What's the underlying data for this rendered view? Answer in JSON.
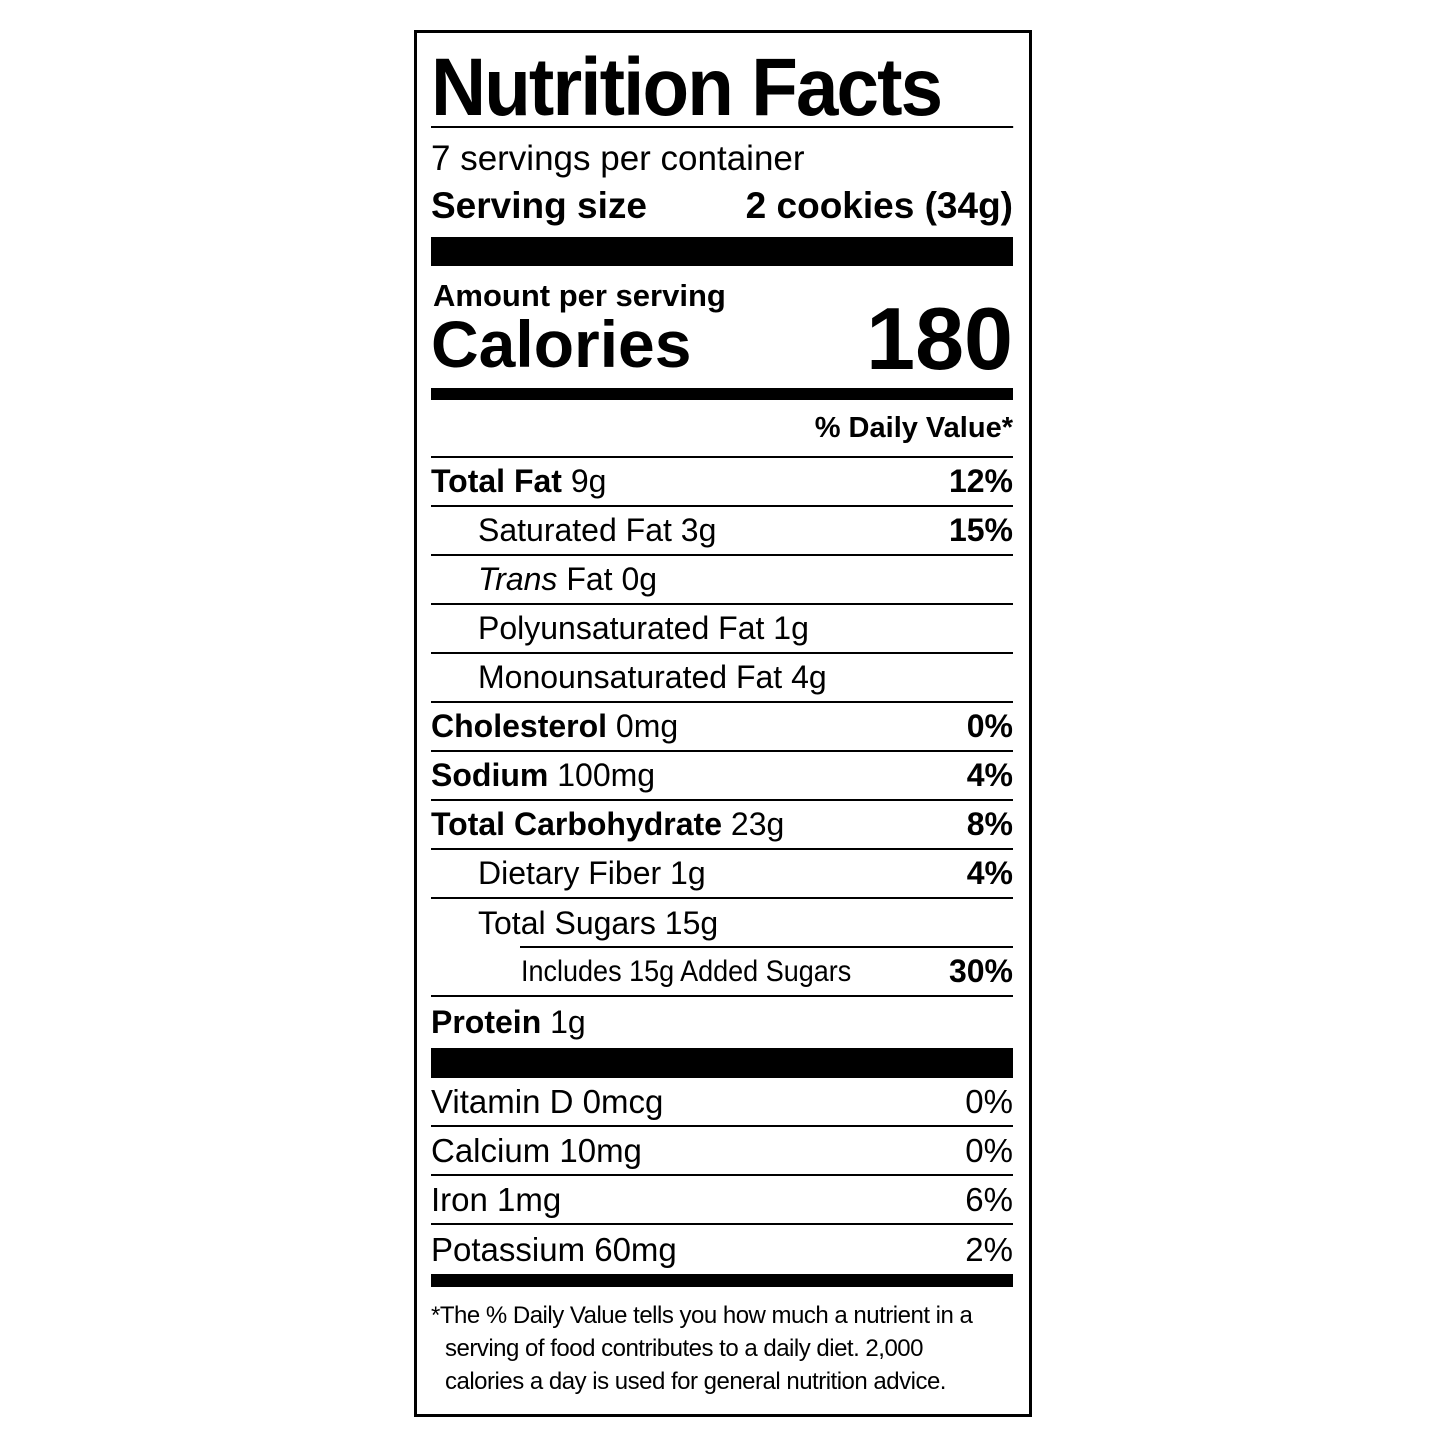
{
  "title": "Nutrition Facts",
  "servings_per_container": "7 servings per container",
  "serving_size_label": "Serving size",
  "serving_size_value": "2 cookies (34g)",
  "amount_per_serving": "Amount per serving",
  "calories_label": "Calories",
  "calories_value": "180",
  "daily_value_header": "% Daily Value*",
  "nutrients": [
    {
      "name": "Total Fat",
      "amount": "9g",
      "dv": "12%"
    },
    {
      "name": "Saturated Fat 3g",
      "dv": "15%"
    },
    {
      "name_italic": "Trans",
      "name": " Fat 0g"
    },
    {
      "name": "Polyunsaturated Fat 1g"
    },
    {
      "name": "Monounsaturated Fat 4g"
    },
    {
      "name": "Cholesterol",
      "amount": "0mg",
      "dv": "0%"
    },
    {
      "name": "Sodium",
      "amount": "100mg",
      "dv": "4%"
    },
    {
      "name": "Total Carbohydrate",
      "amount": "23g",
      "dv": "8%"
    },
    {
      "name": "Dietary Fiber 1g",
      "dv": "4%"
    },
    {
      "name": "Total Sugars 15g"
    },
    {
      "name": "Includes 15g Added Sugars",
      "dv": "30%"
    },
    {
      "name": "Protein",
      "amount": "1g"
    }
  ],
  "vitamins": [
    {
      "name": "Vitamin D 0mcg",
      "dv": "0%"
    },
    {
      "name": "Calcium 10mg",
      "dv": "0%"
    },
    {
      "name": "Iron 1mg",
      "dv": "6%"
    },
    {
      "name": "Potassium 60mg",
      "dv": "2%"
    }
  ],
  "footnote": [
    "*The % Daily Value tells you how much a nutrient in a",
    "serving of food contributes to a daily diet. 2,000",
    "calories a day is used for general nutrition advice."
  ]
}
